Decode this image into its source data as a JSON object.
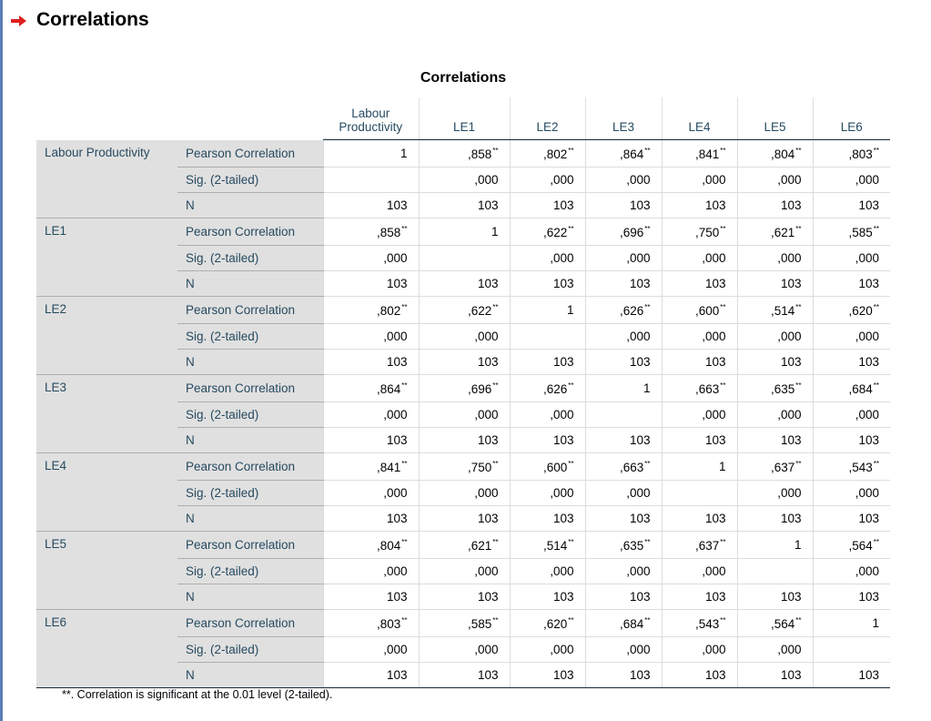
{
  "header": {
    "title": "Correlations"
  },
  "table": {
    "caption": "Correlations",
    "columns": [
      "Labour Productivity",
      "LE1",
      "LE2",
      "LE3",
      "LE4",
      "LE5",
      "LE6"
    ],
    "variables": [
      {
        "name": "Labour Productivity",
        "rows": [
          {
            "stat": "Pearson Correlation",
            "cells": [
              "1",
              {
                "text": ",858",
                "mark": "**"
              },
              {
                "text": ",802",
                "mark": "**"
              },
              {
                "text": ",864",
                "mark": "**"
              },
              {
                "text": ",841",
                "mark": "**"
              },
              {
                "text": ",804",
                "mark": "**"
              },
              {
                "text": ",803",
                "mark": "**"
              }
            ]
          },
          {
            "stat": "Sig. (2-tailed)",
            "cells": [
              null,
              ",000",
              ",000",
              ",000",
              ",000",
              ",000",
              ",000"
            ]
          },
          {
            "stat": "N",
            "cells": [
              "103",
              "103",
              "103",
              "103",
              "103",
              "103",
              "103"
            ]
          }
        ]
      },
      {
        "name": "LE1",
        "rows": [
          {
            "stat": "Pearson Correlation",
            "cells": [
              {
                "text": ",858",
                "mark": "**"
              },
              "1",
              {
                "text": ",622",
                "mark": "**"
              },
              {
                "text": ",696",
                "mark": "**"
              },
              {
                "text": ",750",
                "mark": "**"
              },
              {
                "text": ",621",
                "mark": "**"
              },
              {
                "text": ",585",
                "mark": "**"
              }
            ]
          },
          {
            "stat": "Sig. (2-tailed)",
            "cells": [
              ",000",
              null,
              ",000",
              ",000",
              ",000",
              ",000",
              ",000"
            ]
          },
          {
            "stat": "N",
            "cells": [
              "103",
              "103",
              "103",
              "103",
              "103",
              "103",
              "103"
            ]
          }
        ]
      },
      {
        "name": "LE2",
        "rows": [
          {
            "stat": "Pearson Correlation",
            "cells": [
              {
                "text": ",802",
                "mark": "**"
              },
              {
                "text": ",622",
                "mark": "**"
              },
              "1",
              {
                "text": ",626",
                "mark": "**"
              },
              {
                "text": ",600",
                "mark": "**"
              },
              {
                "text": ",514",
                "mark": "**"
              },
              {
                "text": ",620",
                "mark": "**"
              }
            ]
          },
          {
            "stat": "Sig. (2-tailed)",
            "cells": [
              ",000",
              ",000",
              null,
              ",000",
              ",000",
              ",000",
              ",000"
            ]
          },
          {
            "stat": "N",
            "cells": [
              "103",
              "103",
              "103",
              "103",
              "103",
              "103",
              "103"
            ]
          }
        ]
      },
      {
        "name": "LE3",
        "rows": [
          {
            "stat": "Pearson Correlation",
            "cells": [
              {
                "text": ",864",
                "mark": "**"
              },
              {
                "text": ",696",
                "mark": "**"
              },
              {
                "text": ",626",
                "mark": "**"
              },
              "1",
              {
                "text": ",663",
                "mark": "**"
              },
              {
                "text": ",635",
                "mark": "**"
              },
              {
                "text": ",684",
                "mark": "**"
              }
            ]
          },
          {
            "stat": "Sig. (2-tailed)",
            "cells": [
              ",000",
              ",000",
              ",000",
              null,
              ",000",
              ",000",
              ",000"
            ]
          },
          {
            "stat": "N",
            "cells": [
              "103",
              "103",
              "103",
              "103",
              "103",
              "103",
              "103"
            ]
          }
        ]
      },
      {
        "name": "LE4",
        "rows": [
          {
            "stat": "Pearson Correlation",
            "cells": [
              {
                "text": ",841",
                "mark": "**"
              },
              {
                "text": ",750",
                "mark": "**"
              },
              {
                "text": ",600",
                "mark": "**"
              },
              {
                "text": ",663",
                "mark": "**"
              },
              "1",
              {
                "text": ",637",
                "mark": "**"
              },
              {
                "text": ",543",
                "mark": "**"
              }
            ]
          },
          {
            "stat": "Sig. (2-tailed)",
            "cells": [
              ",000",
              ",000",
              ",000",
              ",000",
              null,
              ",000",
              ",000"
            ]
          },
          {
            "stat": "N",
            "cells": [
              "103",
              "103",
              "103",
              "103",
              "103",
              "103",
              "103"
            ]
          }
        ]
      },
      {
        "name": "LE5",
        "rows": [
          {
            "stat": "Pearson Correlation",
            "cells": [
              {
                "text": ",804",
                "mark": "**"
              },
              {
                "text": ",621",
                "mark": "**"
              },
              {
                "text": ",514",
                "mark": "**"
              },
              {
                "text": ",635",
                "mark": "**"
              },
              {
                "text": ",637",
                "mark": "**"
              },
              "1",
              {
                "text": ",564",
                "mark": "**"
              }
            ]
          },
          {
            "stat": "Sig. (2-tailed)",
            "cells": [
              ",000",
              ",000",
              ",000",
              ",000",
              ",000",
              null,
              ",000"
            ]
          },
          {
            "stat": "N",
            "cells": [
              "103",
              "103",
              "103",
              "103",
              "103",
              "103",
              "103"
            ]
          }
        ]
      },
      {
        "name": "LE6",
        "rows": [
          {
            "stat": "Pearson Correlation",
            "cells": [
              {
                "text": ",803",
                "mark": "**"
              },
              {
                "text": ",585",
                "mark": "**"
              },
              {
                "text": ",620",
                "mark": "**"
              },
              {
                "text": ",684",
                "mark": "**"
              },
              {
                "text": ",543",
                "mark": "**"
              },
              {
                "text": ",564",
                "mark": "**"
              },
              "1"
            ]
          },
          {
            "stat": "Sig. (2-tailed)",
            "cells": [
              ",000",
              ",000",
              ",000",
              ",000",
              ",000",
              ",000",
              null
            ]
          },
          {
            "stat": "N",
            "cells": [
              "103",
              "103",
              "103",
              "103",
              "103",
              "103",
              "103"
            ]
          }
        ]
      }
    ]
  },
  "footnote": "**. Correlation is significant at the 0.01 level (2-tailed)."
}
